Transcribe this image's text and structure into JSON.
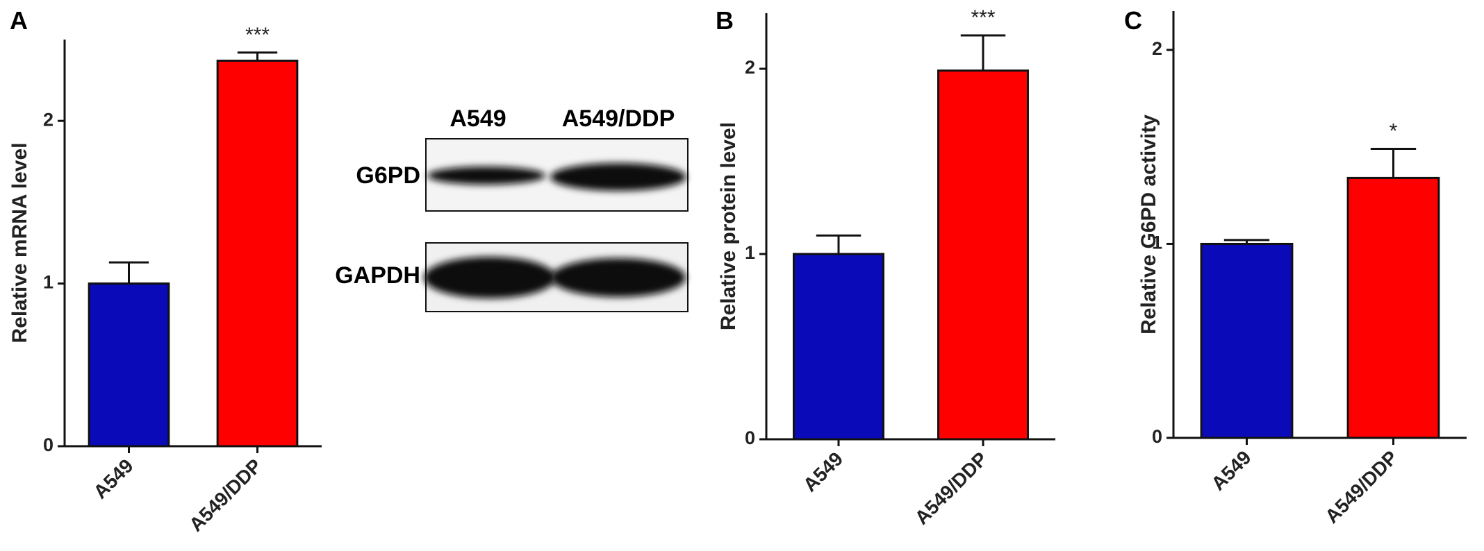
{
  "chart_data": [
    {
      "type": "bar",
      "panel": "A",
      "ylabel": "Relative mRNA level",
      "categories": [
        "A549",
        "A549/DDP"
      ],
      "values": [
        1.0,
        2.37
      ],
      "errors": [
        0.13,
        0.05
      ],
      "colors": [
        "#0a0ab8",
        "#ff0000"
      ],
      "significance": "***",
      "ylim": [
        0,
        2.5
      ],
      "yticks": [
        0,
        1,
        2
      ]
    },
    {
      "type": "bar",
      "panel": "B",
      "ylabel": "Relative protein level",
      "categories": [
        "A549",
        "A549/DDP"
      ],
      "values": [
        1.0,
        1.99
      ],
      "errors": [
        0.1,
        0.19
      ],
      "colors": [
        "#0a0ab8",
        "#ff0000"
      ],
      "significance": "***",
      "ylim": [
        0,
        2.3
      ],
      "yticks": [
        0,
        1,
        2
      ]
    },
    {
      "type": "bar",
      "panel": "C",
      "ylabel": "Relative G6PD activity",
      "categories": [
        "A549",
        "A549/DDP"
      ],
      "values": [
        1.0,
        1.34
      ],
      "errors": [
        0.02,
        0.15
      ],
      "colors": [
        "#0a0ab8",
        "#ff0000"
      ],
      "significance": "*",
      "ylim": [
        0,
        2.2
      ],
      "yticks": [
        0,
        1,
        2
      ]
    }
  ],
  "blot": {
    "lanes": [
      "A549",
      "A549/DDP"
    ],
    "rows": [
      "G6PD",
      "GAPDH"
    ]
  }
}
